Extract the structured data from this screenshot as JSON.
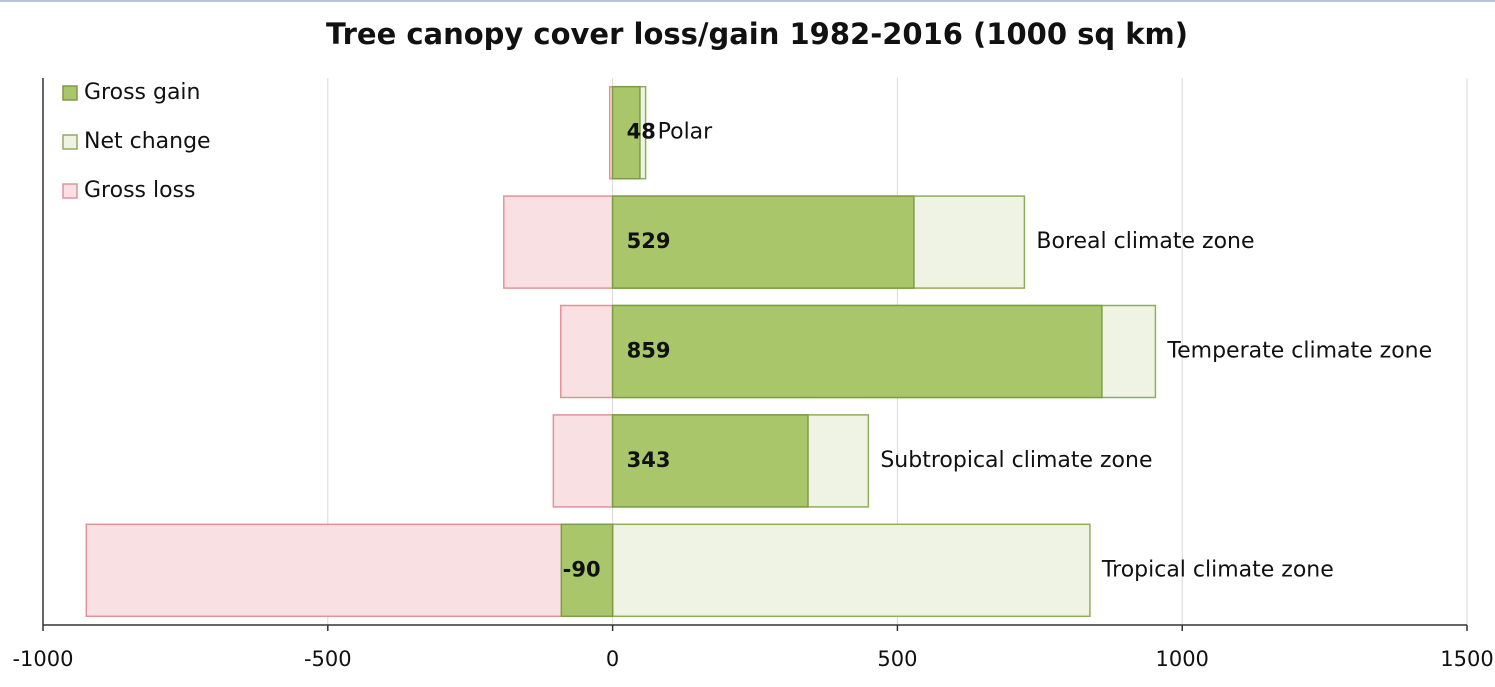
{
  "chart_data": {
    "type": "bar",
    "orientation": "horizontal",
    "title": "Tree canopy cover loss/gain 1982-2016 (1000 sq km)",
    "categories": [
      "Polar",
      "Boreal climate zone",
      "Temperate climate zone",
      "Subtropical climate zone",
      "Tropical climate zone"
    ],
    "series": [
      {
        "name": "Gross gain",
        "color": "#a9c66b",
        "values": [
          48,
          529,
          859,
          343,
          -90
        ],
        "data_labels": true
      },
      {
        "name": "Net change",
        "color": "#eef3e3",
        "values": [
          58,
          723,
          953,
          449,
          838
        ]
      },
      {
        "name": "Gross loss",
        "color": "#f9e1e3",
        "values": [
          -5,
          -191,
          -91,
          -104,
          -924
        ]
      }
    ],
    "xlim": [
      -1000,
      1500
    ],
    "xticks": [
      -1000,
      -500,
      0,
      500,
      1000,
      1500
    ],
    "grid": true,
    "legend": "upper left"
  }
}
